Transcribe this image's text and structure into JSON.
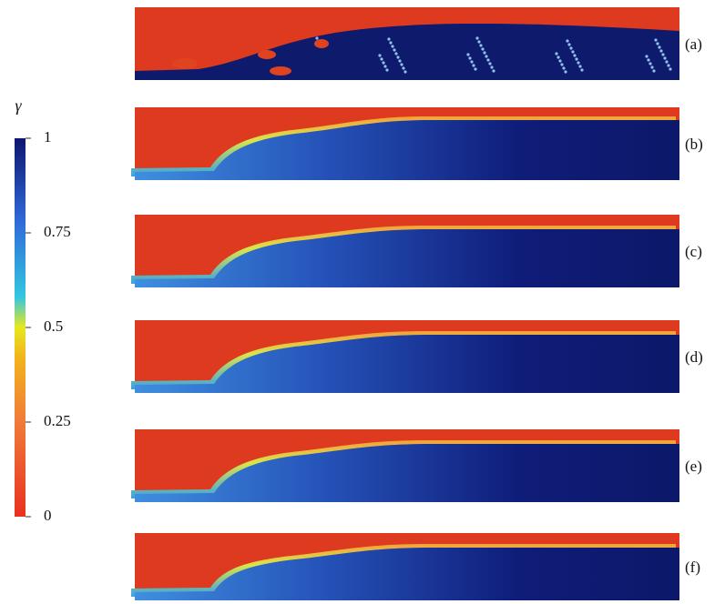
{
  "colorbar": {
    "label": "γ",
    "lim": [
      0,
      1
    ],
    "ticks": [
      0,
      0.25,
      0.5,
      0.75,
      1
    ]
  },
  "panels": [
    {
      "label": "(a)"
    },
    {
      "label": "(b)"
    },
    {
      "label": "(c)"
    },
    {
      "label": "(d)"
    },
    {
      "label": "(e)"
    },
    {
      "label": "(f)"
    }
  ]
}
